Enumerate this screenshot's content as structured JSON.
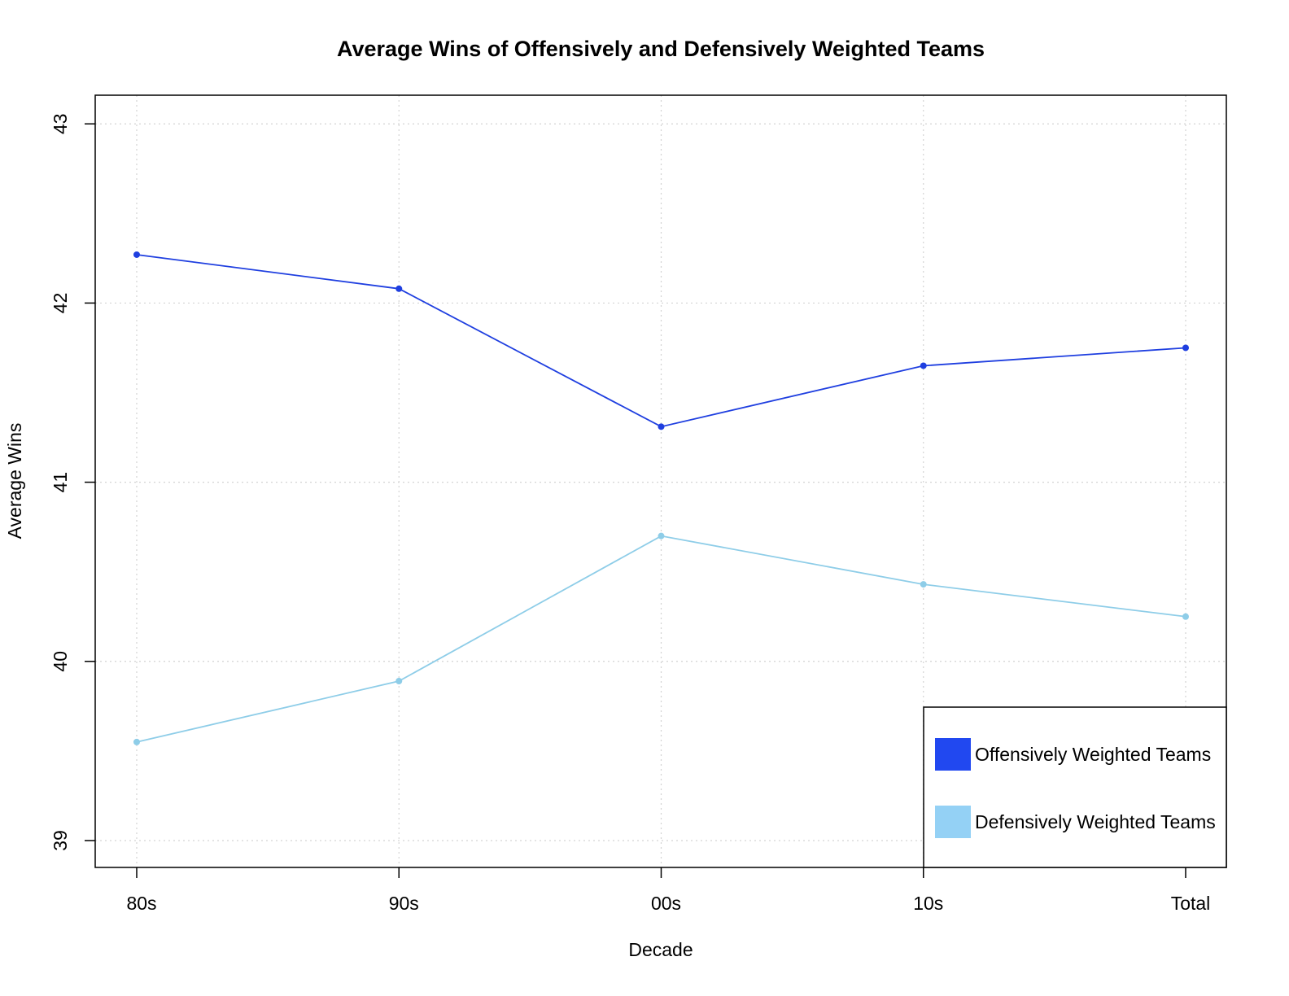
{
  "chart_data": {
    "type": "line",
    "title": "Average Wins of Offensively and Defensively Weighted Teams",
    "xlabel": "Decade",
    "ylabel": "Average Wins",
    "categories": [
      "80s",
      "90s",
      "00s",
      "10s",
      "Total"
    ],
    "ylim": [
      38.85,
      43.16
    ],
    "yticks": [
      39,
      40,
      41,
      42,
      43
    ],
    "grid": true,
    "legend_position": "bottom-right",
    "series": [
      {
        "name": "Offensively Weighted Teams",
        "color": "#1f3fe0",
        "legend_color": "#2148f0",
        "values": [
          42.27,
          42.08,
          41.31,
          41.65,
          41.75
        ]
      },
      {
        "name": "Defensively Weighted Teams",
        "color": "#8ecde8",
        "legend_color": "#94d1f5",
        "values": [
          39.55,
          39.89,
          40.7,
          40.43,
          40.25
        ]
      }
    ]
  }
}
